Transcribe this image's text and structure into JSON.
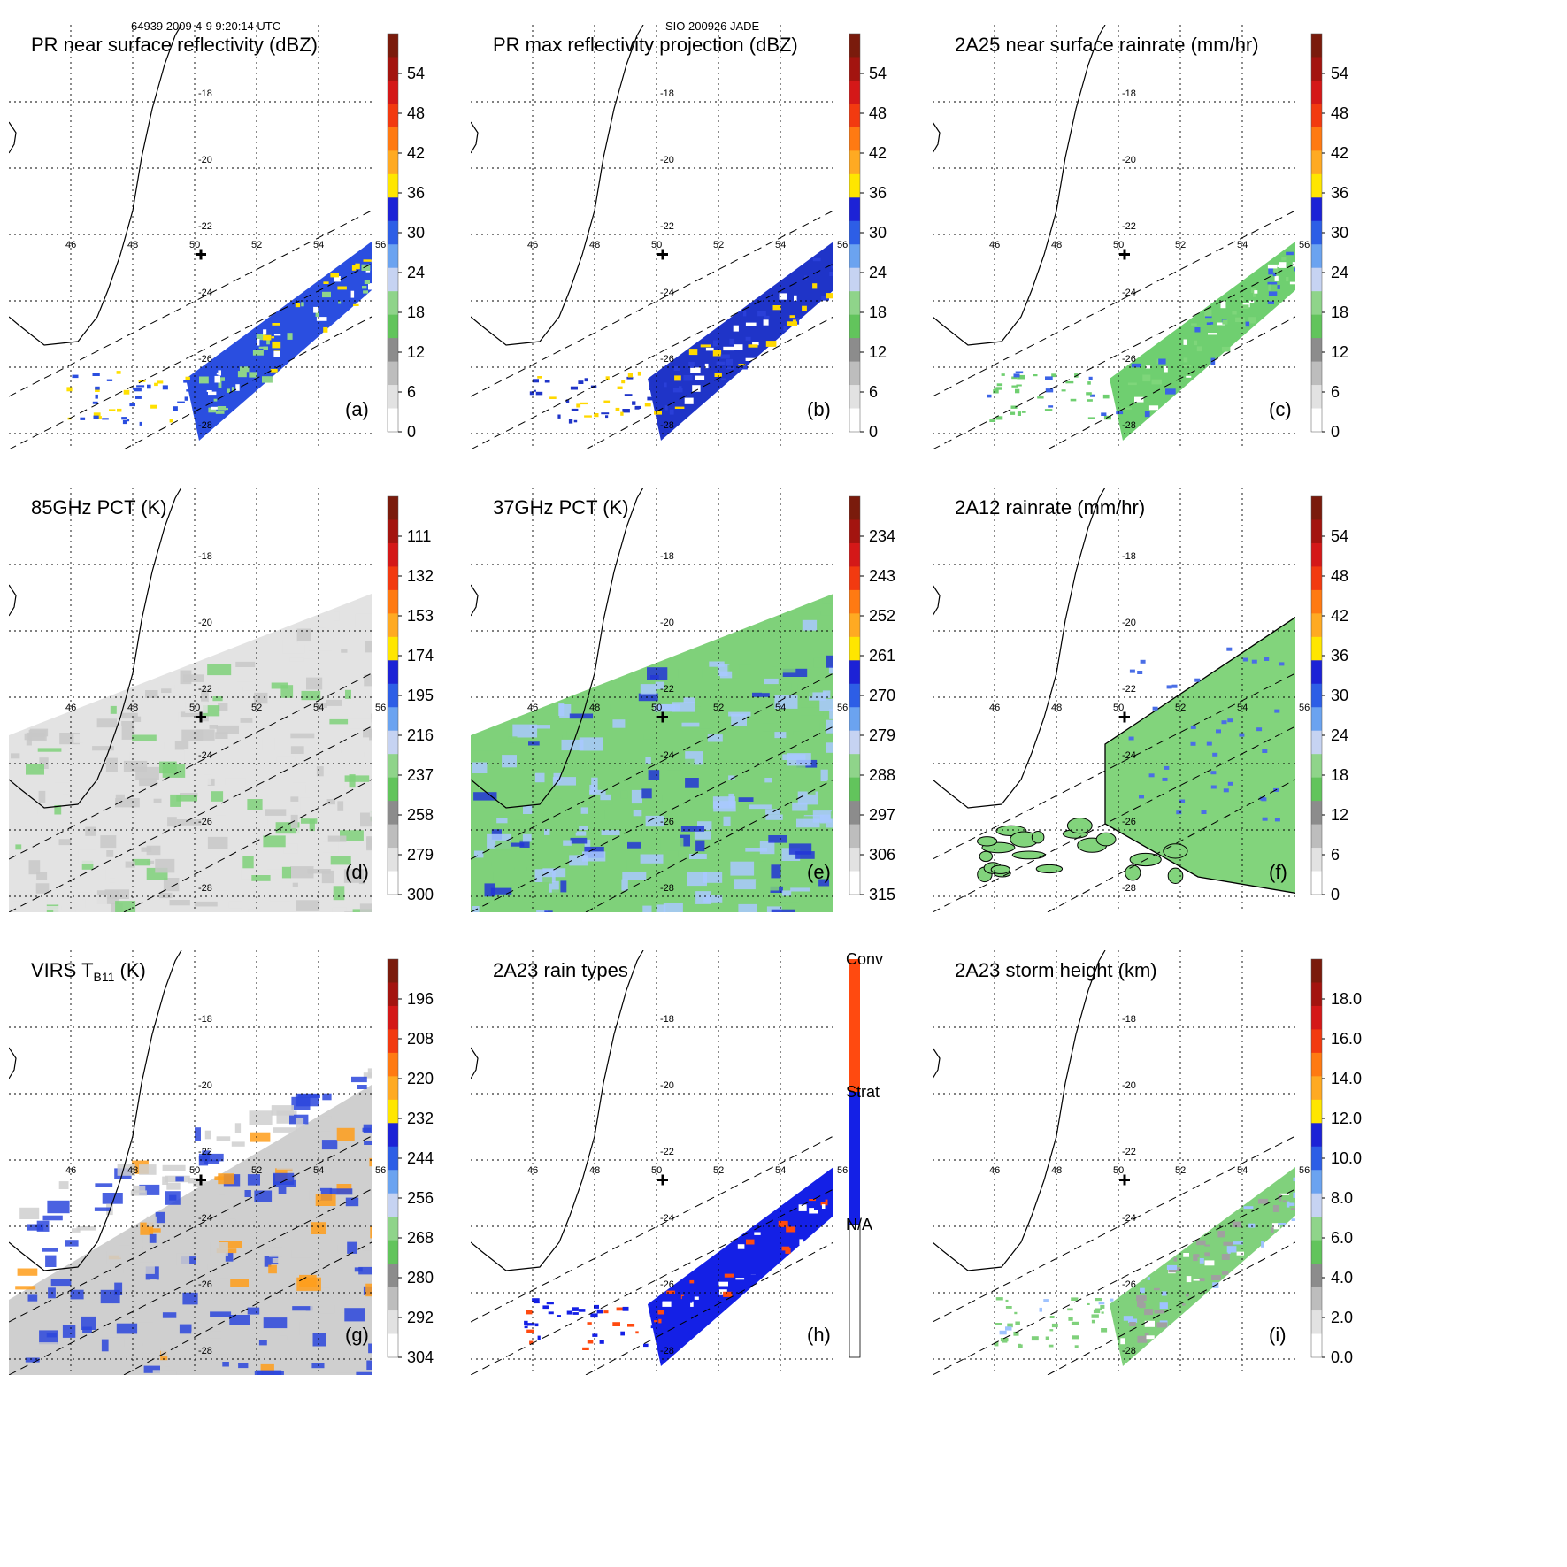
{
  "header": {
    "left": "64939 2009-4-9 9:20:14 UTC",
    "center": "SIO 200926 JADE"
  },
  "geo": {
    "lons": [
      "46",
      "48",
      "50",
      "52",
      "54",
      "56"
    ],
    "lats": [
      "-18",
      "-20",
      "-22",
      "-24",
      "-26",
      "-28"
    ]
  },
  "chart_data": [
    {
      "type": "heatmap",
      "panel": "a",
      "title": "PR near surface reflectivity (dBZ)",
      "label": "(a)",
      "colorbar": {
        "ticks": [
          "54",
          "48",
          "42",
          "36",
          "30",
          "24",
          "18",
          "12",
          "6",
          "0"
        ],
        "vmin": 0,
        "vmax": 60
      },
      "colors": {
        "low": "#8fd48a",
        "mid": "#2a4ee0",
        "hi": "#ffe000"
      }
    },
    {
      "type": "heatmap",
      "panel": "b",
      "title": "PR max reflectivity projection (dBZ)",
      "label": "(b)",
      "colorbar": {
        "ticks": [
          "54",
          "48",
          "42",
          "36",
          "30",
          "24",
          "18",
          "12",
          "6",
          "0"
        ],
        "vmin": 0,
        "vmax": 60
      },
      "colors": {
        "low": "#2a3fd8",
        "mid": "#1f34c8",
        "hi": "#ffd800"
      }
    },
    {
      "type": "heatmap",
      "panel": "c",
      "title": "2A25 near surface rainrate (mm/hr)",
      "label": "(c)",
      "colorbar": {
        "ticks": [
          "54",
          "48",
          "42",
          "36",
          "30",
          "24",
          "18",
          "12",
          "6",
          "0"
        ],
        "vmin": 0,
        "vmax": 60
      },
      "colors": {
        "low": "#7ed67a",
        "mid": "#6fcf70",
        "hi": "#3b63e6"
      }
    },
    {
      "type": "heatmap",
      "panel": "d",
      "title": "85GHz PCT (K)",
      "label": "(d)",
      "colorbar": {
        "ticks": [
          "111",
          "132",
          "153",
          "174",
          "195",
          "216",
          "237",
          "258",
          "279",
          "300"
        ],
        "vmin": 300,
        "vmax": 90
      },
      "colors": {
        "low": "#e3e3e3",
        "mid": "#c8c8c8",
        "hi": "#7fd17a"
      }
    },
    {
      "type": "heatmap",
      "panel": "e",
      "title": "37GHz PCT (K)",
      "label": "(e)",
      "colorbar": {
        "ticks": [
          "234",
          "243",
          "252",
          "261",
          "270",
          "279",
          "288",
          "297",
          "306",
          "315"
        ],
        "vmin": 315,
        "vmax": 225
      },
      "colors": {
        "low": "#7fd17a",
        "mid": "#a9c9ff",
        "hi": "#2236d6"
      }
    },
    {
      "type": "heatmap",
      "panel": "f",
      "title": "2A12 rainrate (mm/hr)",
      "label": "(f)",
      "colorbar": {
        "ticks": [
          "54",
          "48",
          "42",
          "36",
          "30",
          "24",
          "18",
          "12",
          "6",
          "0"
        ],
        "vmin": 0,
        "vmax": 60
      },
      "colors": {
        "low": "#82d47c",
        "mid": "#78d176",
        "hi": "#4a6ee6"
      }
    },
    {
      "type": "heatmap",
      "panel": "g",
      "title": "VIRS T",
      "title_sub": "B11",
      "title_tail": " (K)",
      "label": "(g)",
      "colorbar": {
        "ticks": [
          "196",
          "208",
          "220",
          "232",
          "244",
          "256",
          "268",
          "280",
          "292",
          "304"
        ],
        "vmin": 304,
        "vmax": 184
      },
      "colors": {
        "low": "#cfcfcf",
        "mid": "#2c46dc",
        "hi": "#ff9d1a"
      }
    },
    {
      "type": "heatmap",
      "panel": "h",
      "title": "2A23 rain types",
      "label": "(h)",
      "colorbar": {
        "ticks": [
          "Conv",
          "Strat",
          "N/A"
        ],
        "categorical": true
      },
      "colors": {
        "low": "#1420e6",
        "mid": "#1420e6",
        "hi": "#ff4a10"
      }
    },
    {
      "type": "heatmap",
      "panel": "i",
      "title": "2A23 storm height (km)",
      "label": "(i)",
      "colorbar": {
        "ticks": [
          "18.0",
          "16.0",
          "14.0",
          "12.0",
          "10.0",
          "8.0",
          "6.0",
          "4.0",
          "2.0",
          "0.0"
        ],
        "vmin": 0,
        "vmax": 20
      },
      "colors": {
        "low": "#a0a0a0",
        "mid": "#80d17c",
        "hi": "#9fc3ff"
      }
    }
  ]
}
